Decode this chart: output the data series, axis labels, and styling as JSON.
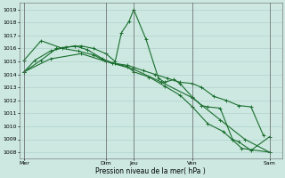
{
  "xlabel": "Pression niveau de la mer( hPa )",
  "ylim": [
    1007.5,
    1019.5
  ],
  "yticks": [
    1008,
    1009,
    1010,
    1011,
    1012,
    1013,
    1014,
    1015,
    1016,
    1017,
    1018,
    1019
  ],
  "xlim": [
    0,
    8.5
  ],
  "xtick_labels": [
    "Mer",
    "Dim",
    "Jeu",
    "Ven",
    "Sam"
  ],
  "xtick_positions": [
    0.15,
    2.8,
    3.7,
    5.6,
    8.1
  ],
  "vline_positions": [
    0.15,
    2.8,
    3.7,
    5.6,
    8.1
  ],
  "bg_color": "#cce8e0",
  "grid_color": "#aacccc",
  "line_color": "#1a6e2e",
  "lines": [
    [
      0.15,
      1015.1,
      0.7,
      1016.6,
      1.4,
      1016.0,
      1.9,
      1015.8,
      2.4,
      1015.5,
      2.8,
      1015.0,
      3.1,
      1014.85,
      3.5,
      1014.7,
      3.7,
      1014.55,
      4.0,
      1014.3,
      4.4,
      1014.0,
      4.8,
      1013.7,
      5.2,
      1013.4,
      5.6,
      1013.3,
      5.9,
      1013.0,
      6.3,
      1012.3,
      6.7,
      1012.0,
      7.1,
      1011.6,
      7.5,
      1011.5,
      7.9,
      1009.3
    ],
    [
      0.15,
      1014.2,
      0.5,
      1015.1,
      1.0,
      1015.8,
      1.5,
      1016.1,
      2.0,
      1016.2,
      2.4,
      1016.0,
      2.8,
      1015.6,
      3.1,
      1015.0,
      3.3,
      1017.2,
      3.55,
      1018.1,
      3.7,
      1019.0,
      4.1,
      1016.7,
      4.5,
      1013.7,
      4.7,
      1013.4,
      5.0,
      1013.6,
      5.2,
      1013.3,
      5.6,
      1012.25,
      5.9,
      1011.6,
      6.1,
      1011.5,
      6.5,
      1011.4,
      6.9,
      1009.0,
      7.1,
      1008.8,
      7.5,
      1008.15,
      8.1,
      1009.2
    ],
    [
      0.15,
      1014.2,
      0.7,
      1015.1,
      1.2,
      1016.0,
      1.8,
      1016.2,
      2.2,
      1015.9,
      2.7,
      1015.2,
      3.0,
      1014.9,
      3.5,
      1014.6,
      3.7,
      1014.2,
      4.2,
      1013.8,
      4.7,
      1013.1,
      5.2,
      1012.4,
      5.6,
      1011.5,
      6.1,
      1010.2,
      6.6,
      1009.6,
      7.2,
      1008.3,
      8.1,
      1008.0
    ],
    [
      0.15,
      1014.2,
      1.0,
      1015.2,
      2.0,
      1015.6,
      2.8,
      1015.0,
      3.7,
      1014.4,
      4.6,
      1013.4,
      5.6,
      1012.2,
      6.5,
      1010.5,
      7.3,
      1009.0,
      8.1,
      1008.0
    ]
  ],
  "figsize": [
    3.2,
    2.0
  ],
  "dpi": 100
}
